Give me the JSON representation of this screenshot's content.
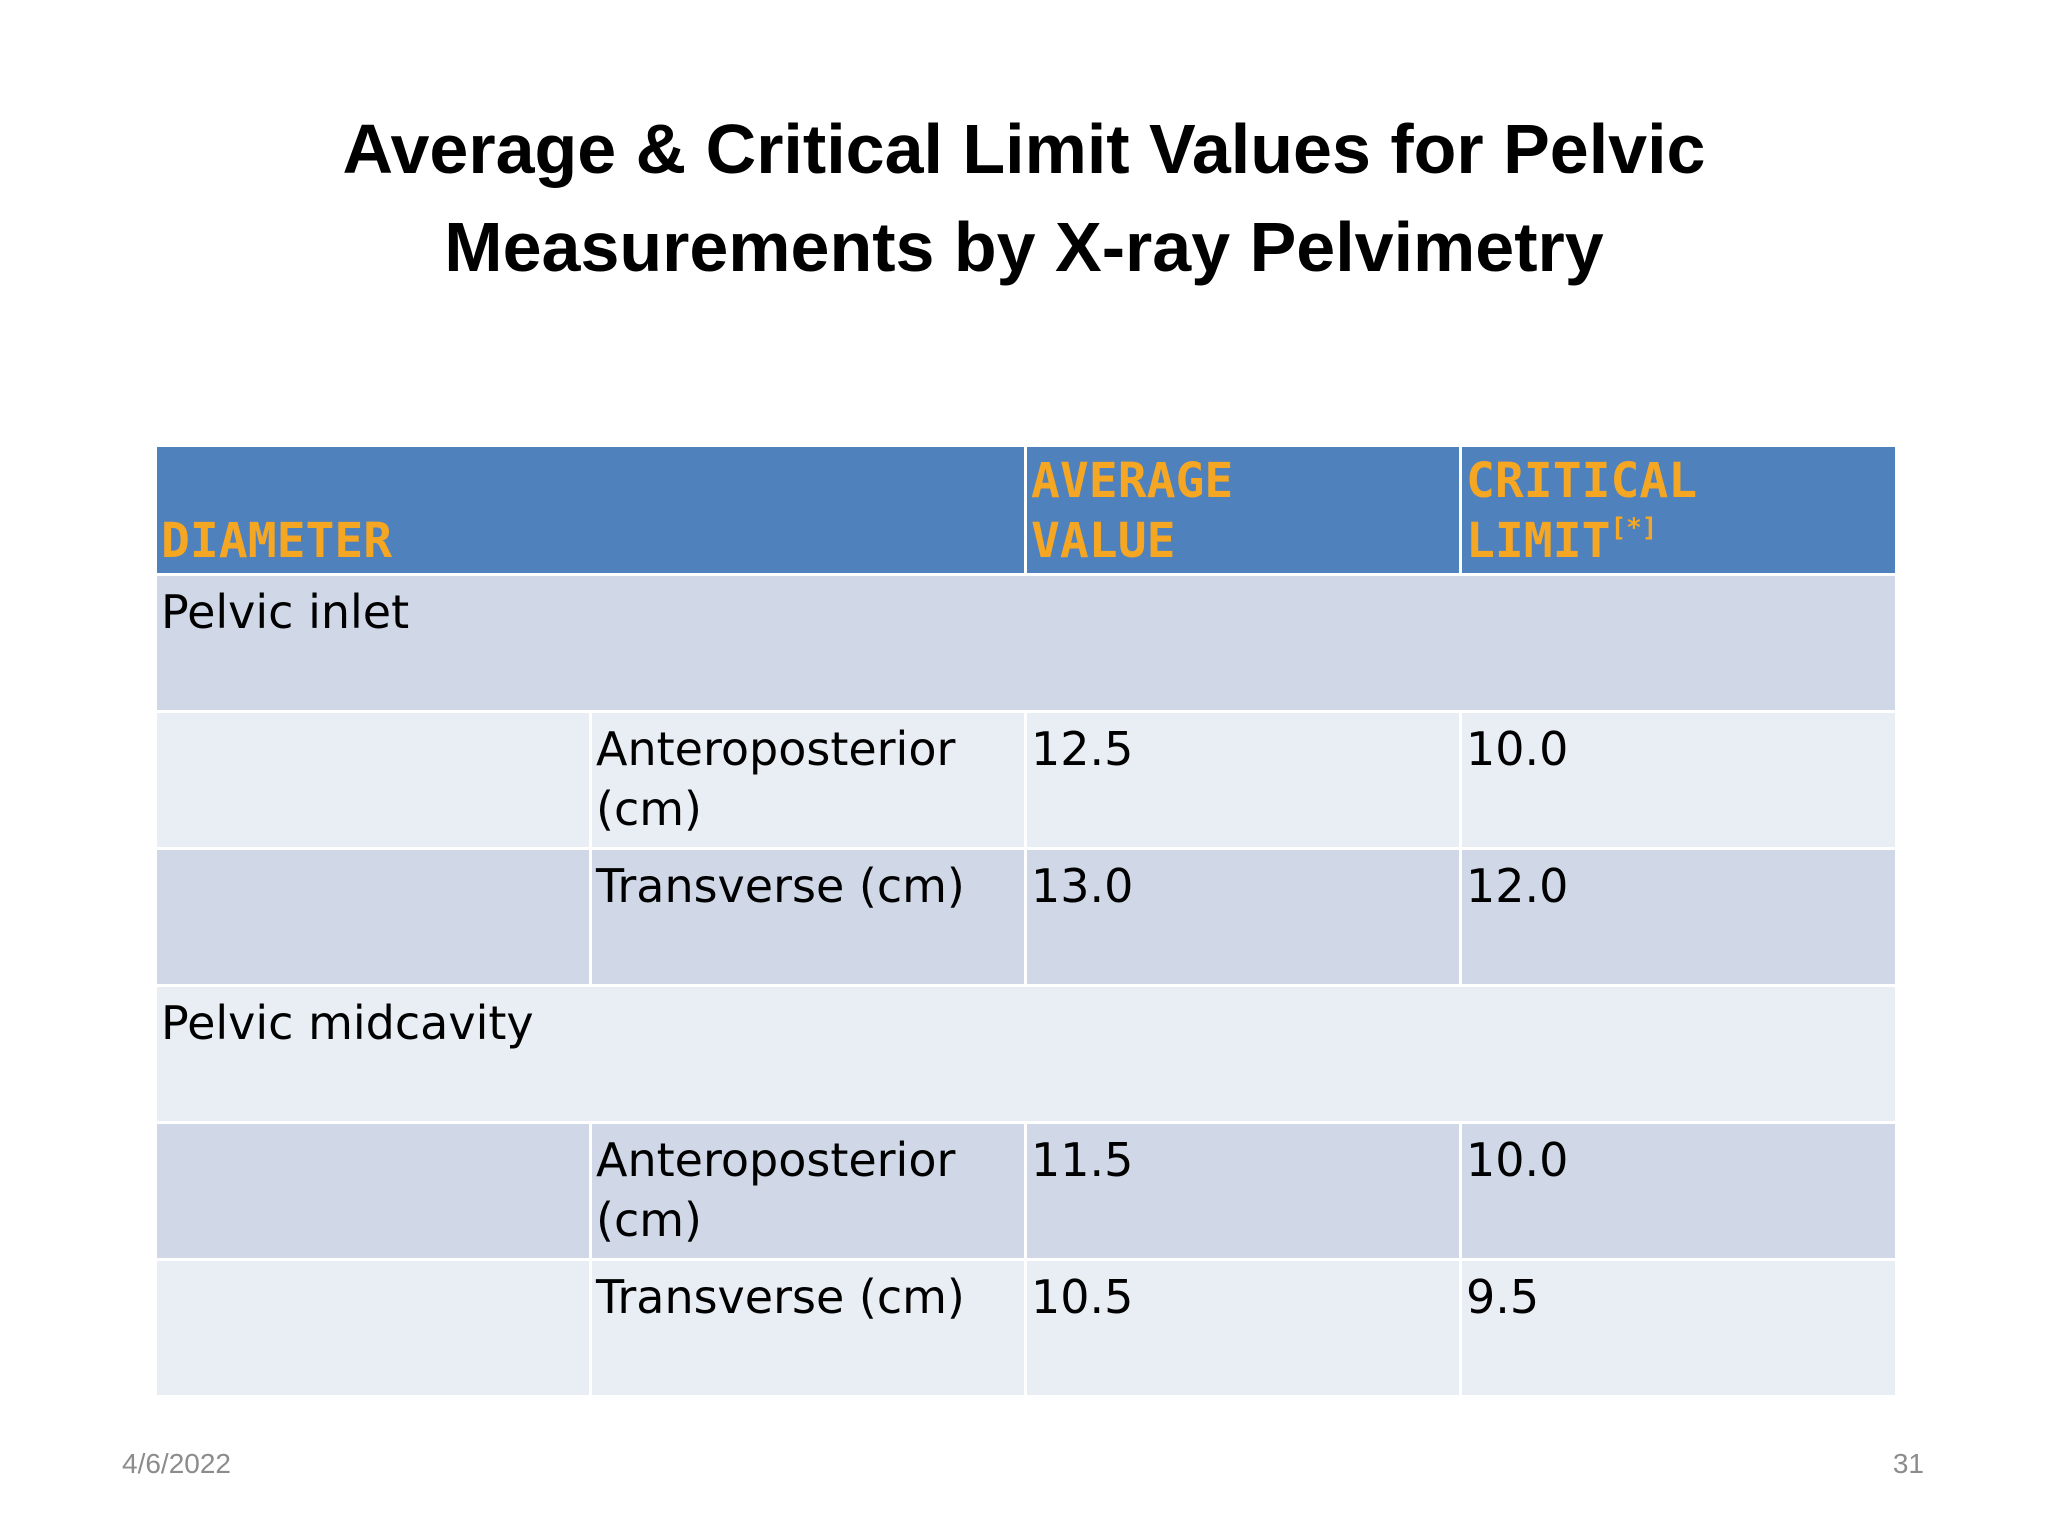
{
  "slide": {
    "title_line1": "Average & Critical Limit Values for Pelvic",
    "title_line2": "Measurements by X-ray Pelvimetry",
    "date": "4/6/2022",
    "page_number": "31"
  },
  "table": {
    "headers": {
      "diameter": "DIAMETER",
      "average_line1": "AVERAGE",
      "average_line2": "VALUE",
      "critical_line1": "CRITICAL",
      "critical_line2": "LIMIT",
      "critical_ref": "[*]"
    },
    "sections": [
      {
        "label": "Pelvic inlet",
        "rows": [
          {
            "measure": "Anteroposterior (cm)",
            "average": "12.5",
            "critical": "10.0"
          },
          {
            "measure": "Transverse (cm)",
            "average": "13.0",
            "critical": "12.0"
          }
        ]
      },
      {
        "label": "Pelvic midcavity",
        "rows": [
          {
            "measure": "Anteroposterior (cm)",
            "average": "11.5",
            "critical": "10.0"
          },
          {
            "measure": "Transverse (cm)",
            "average": "10.5",
            "critical": "9.5"
          }
        ]
      }
    ]
  }
}
